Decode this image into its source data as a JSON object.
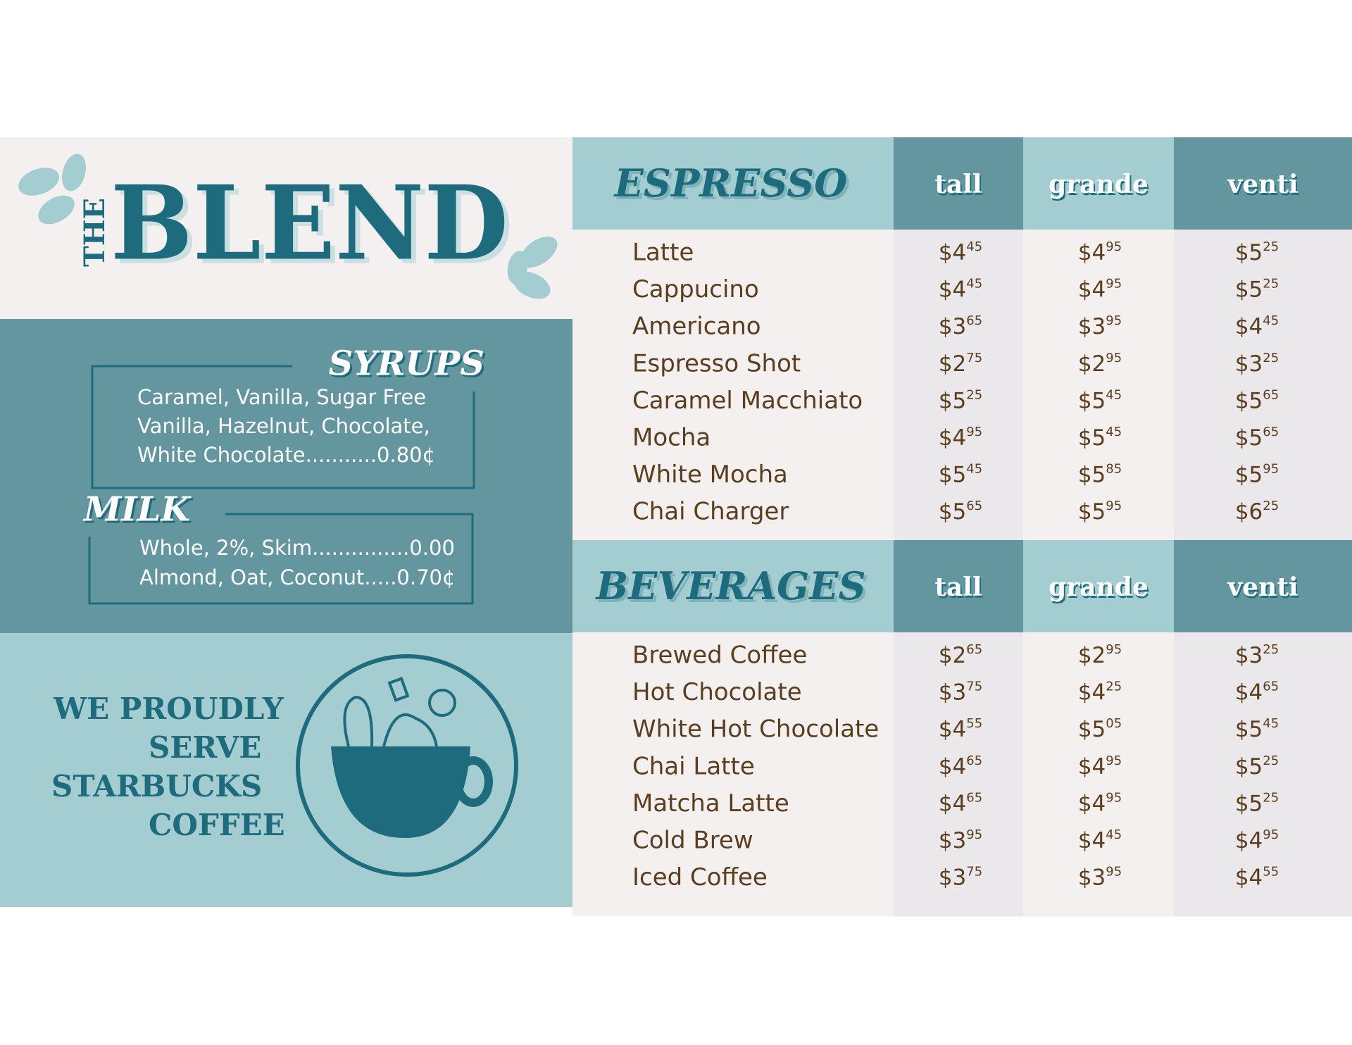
{
  "brand": {
    "the": "THE",
    "name": "BLEND"
  },
  "syrups": {
    "title": "SYRUPS",
    "lines": [
      "Caramel, Vanilla, Sugar Free",
      "Vanilla, Hazelnut, Chocolate,",
      "White Chocolate...........0.80¢"
    ]
  },
  "milk": {
    "title": "MILK",
    "lines": [
      "Whole, 2%, Skim...............0.00",
      "Almond, Oat, Coconut.....0.70¢"
    ]
  },
  "tagline": [
    "WE PROUDLY",
    "SERVE",
    "STARBUCKS",
    "COFFEE"
  ],
  "sections": [
    {
      "title": "ESPRESSO",
      "sizes": [
        "tall",
        "grande",
        "venti"
      ],
      "items": [
        {
          "name": "Latte",
          "prices": [
            [
              "$4",
              "45"
            ],
            [
              "$4",
              "95"
            ],
            [
              "$5",
              "25"
            ]
          ]
        },
        {
          "name": "Cappucino",
          "prices": [
            [
              "$4",
              "45"
            ],
            [
              "$4",
              "95"
            ],
            [
              "$5",
              "25"
            ]
          ]
        },
        {
          "name": "Americano",
          "prices": [
            [
              "$3",
              "65"
            ],
            [
              "$3",
              "95"
            ],
            [
              "$4",
              "45"
            ]
          ]
        },
        {
          "name": "Espresso Shot",
          "prices": [
            [
              "$2",
              "75"
            ],
            [
              "$2",
              "95"
            ],
            [
              "$3",
              "25"
            ]
          ]
        },
        {
          "name": "Caramel Macchiato",
          "prices": [
            [
              "$5",
              "25"
            ],
            [
              "$5",
              "45"
            ],
            [
              "$5",
              "65"
            ]
          ]
        },
        {
          "name": "Mocha",
          "prices": [
            [
              "$4",
              "95"
            ],
            [
              "$5",
              "45"
            ],
            [
              "$5",
              "65"
            ]
          ]
        },
        {
          "name": "White Mocha",
          "prices": [
            [
              "$5",
              "45"
            ],
            [
              "$5",
              "85"
            ],
            [
              "$5",
              "95"
            ]
          ]
        },
        {
          "name": "Chai Charger",
          "prices": [
            [
              "$5",
              "65"
            ],
            [
              "$5",
              "95"
            ],
            [
              "$6",
              "25"
            ]
          ]
        }
      ]
    },
    {
      "title": "BEVERAGES",
      "sizes": [
        "tall",
        "grande",
        "venti"
      ],
      "items": [
        {
          "name": "Brewed Coffee",
          "prices": [
            [
              "$2",
              "65"
            ],
            [
              "$2",
              "95"
            ],
            [
              "$3",
              "25"
            ]
          ]
        },
        {
          "name": "Hot Chocolate",
          "prices": [
            [
              "$3",
              "75"
            ],
            [
              "$4",
              "25"
            ],
            [
              "$4",
              "65"
            ]
          ]
        },
        {
          "name": "White Hot Chocolate",
          "prices": [
            [
              "$4",
              "55"
            ],
            [
              "$5",
              "05"
            ],
            [
              "$5",
              "45"
            ]
          ]
        },
        {
          "name": "Chai Latte",
          "prices": [
            [
              "$4",
              "65"
            ],
            [
              "$4",
              "95"
            ],
            [
              "$5",
              "25"
            ]
          ]
        },
        {
          "name": "Matcha Latte",
          "prices": [
            [
              "$4",
              "65"
            ],
            [
              "$4",
              "95"
            ],
            [
              "$5",
              "25"
            ]
          ]
        },
        {
          "name": "Cold Brew",
          "prices": [
            [
              "$3",
              "95"
            ],
            [
              "$4",
              "45"
            ],
            [
              "$4",
              "95"
            ]
          ]
        },
        {
          "name": "Iced Coffee",
          "prices": [
            [
              "$3",
              "75"
            ],
            [
              "$3",
              "95"
            ],
            [
              "$4",
              "55"
            ]
          ]
        }
      ]
    }
  ]
}
